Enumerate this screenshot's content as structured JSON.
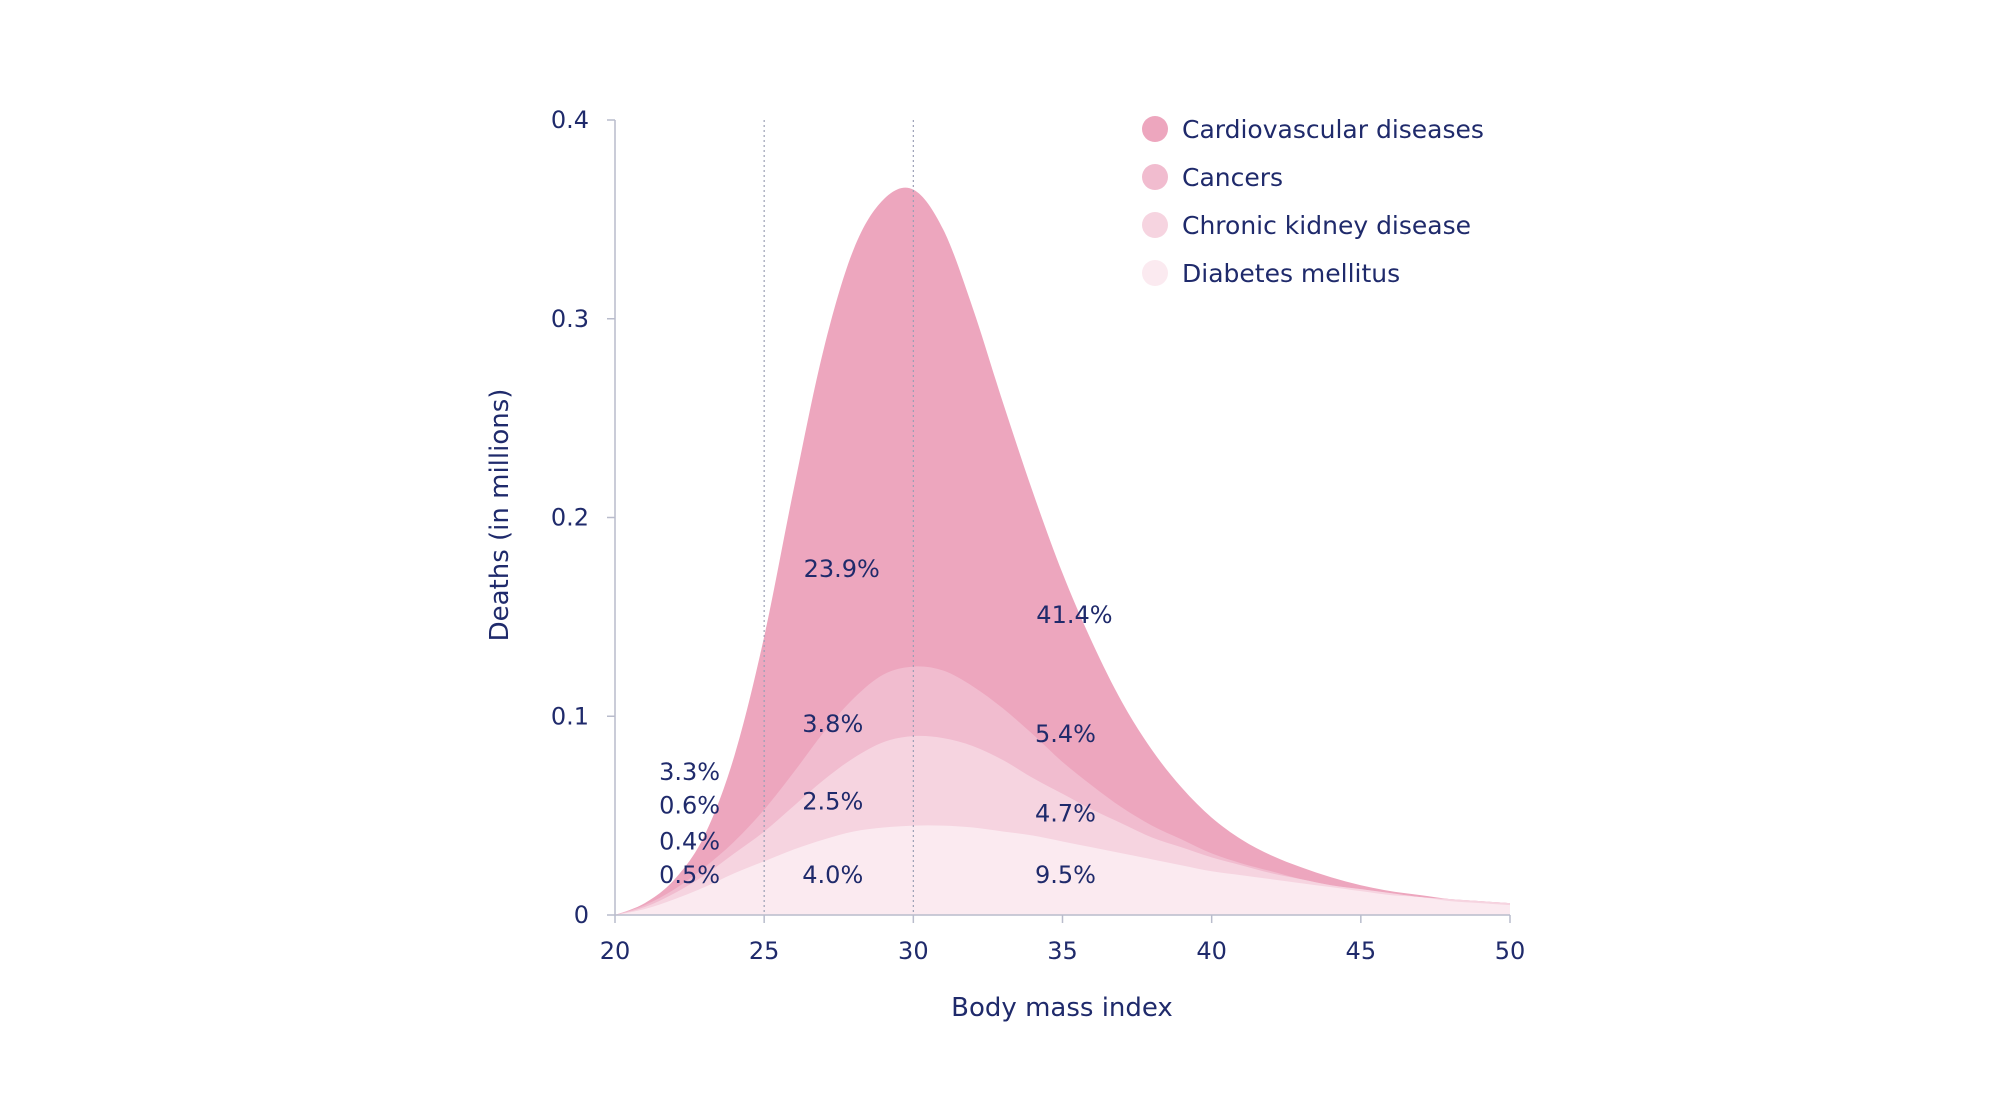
{
  "chart_data": {
    "type": "area",
    "title": "",
    "xlabel": "Body mass index",
    "ylabel": "Deaths (in millions)",
    "xlim": [
      20,
      50
    ],
    "ylim": [
      0,
      0.4
    ],
    "x_ticks": [
      20,
      25,
      30,
      35,
      40,
      45,
      50
    ],
    "x_tick_labels": [
      "20",
      "25",
      "30",
      "35",
      "40",
      "45",
      "50"
    ],
    "y_ticks": [
      0,
      0.1,
      0.2,
      0.3,
      0.4
    ],
    "y_tick_labels": [
      "0",
      "0.1",
      "0.2",
      "0.3",
      "0.4"
    ],
    "reference_lines_x": [
      25,
      30
    ],
    "stacking": "stacked cumulative (top of each band shown)",
    "x": [
      20,
      21,
      22,
      23,
      24,
      25,
      26,
      27,
      28,
      29,
      30,
      31,
      32,
      33,
      34,
      35,
      36,
      37,
      38,
      39,
      40,
      41,
      42,
      43,
      44,
      45,
      46,
      47,
      48,
      49,
      50
    ],
    "series": [
      {
        "name": "Diabetes mellitus",
        "color": "#fbeaf0",
        "values": [
          0,
          0.003,
          0.008,
          0.014,
          0.021,
          0.027,
          0.033,
          0.038,
          0.042,
          0.044,
          0.045,
          0.045,
          0.044,
          0.042,
          0.04,
          0.037,
          0.034,
          0.031,
          0.028,
          0.025,
          0.022,
          0.02,
          0.018,
          0.016,
          0.014,
          0.012,
          0.01,
          0.009,
          0.007,
          0.006,
          0.005
        ]
      },
      {
        "name": "Chronic kidney disease",
        "color": "#f6d4e0",
        "values": [
          0,
          0.004,
          0.011,
          0.02,
          0.031,
          0.042,
          0.055,
          0.068,
          0.079,
          0.087,
          0.09,
          0.089,
          0.085,
          0.078,
          0.069,
          0.061,
          0.053,
          0.046,
          0.039,
          0.034,
          0.029,
          0.025,
          0.021,
          0.018,
          0.015,
          0.013,
          0.011,
          0.009,
          0.008,
          0.007,
          0.006
        ]
      },
      {
        "name": "Cancers",
        "color": "#f1bccf",
        "values": [
          0,
          0.005,
          0.013,
          0.024,
          0.037,
          0.053,
          0.072,
          0.092,
          0.109,
          0.121,
          0.125,
          0.123,
          0.115,
          0.104,
          0.091,
          0.077,
          0.065,
          0.054,
          0.045,
          0.038,
          0.031,
          0.026,
          0.022,
          0.018,
          0.015,
          0.013,
          0.011,
          0.009,
          0.008,
          0.007,
          0.006
        ]
      },
      {
        "name": "Cardiovascular diseases",
        "color": "#eda6be",
        "values": [
          0,
          0.006,
          0.018,
          0.04,
          0.08,
          0.14,
          0.215,
          0.285,
          0.335,
          0.36,
          0.365,
          0.345,
          0.305,
          0.258,
          0.213,
          0.172,
          0.137,
          0.107,
          0.083,
          0.064,
          0.049,
          0.038,
          0.03,
          0.024,
          0.019,
          0.015,
          0.012,
          0.01,
          0.008,
          0.007,
          0.006
        ]
      }
    ],
    "legend": {
      "placement": "top-right",
      "entries": [
        {
          "label": "Cardiovascular diseases",
          "color": "#eda6be"
        },
        {
          "label": "Cancers",
          "color": "#f1bccf"
        },
        {
          "label": "Chronic kidney disease",
          "color": "#f6d4e0"
        },
        {
          "label": "Diabetes mellitus",
          "color": "#fbeaf0"
        }
      ]
    },
    "annotations": [
      {
        "text": "3.3%",
        "x": 22.5,
        "y": 0.068
      },
      {
        "text": "0.6%",
        "x": 22.5,
        "y": 0.051
      },
      {
        "text": "0.4%",
        "x": 22.5,
        "y": 0.033
      },
      {
        "text": "0.5%",
        "x": 22.5,
        "y": 0.016
      },
      {
        "text": "23.9%",
        "x": 27.6,
        "y": 0.17
      },
      {
        "text": "3.8%",
        "x": 27.3,
        "y": 0.092
      },
      {
        "text": "2.5%",
        "x": 27.3,
        "y": 0.053
      },
      {
        "text": "4.0%",
        "x": 27.3,
        "y": 0.016
      },
      {
        "text": "41.4%",
        "x": 35.4,
        "y": 0.147
      },
      {
        "text": "5.4%",
        "x": 35.1,
        "y": 0.087
      },
      {
        "text": "4.7%",
        "x": 35.1,
        "y": 0.047
      },
      {
        "text": "9.5%",
        "x": 35.1,
        "y": 0.016
      }
    ]
  }
}
